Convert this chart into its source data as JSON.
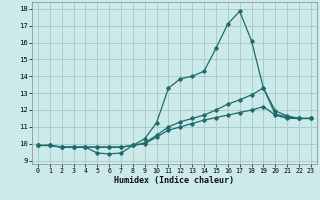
{
  "xlabel": "Humidex (Indice chaleur)",
  "xlim": [
    -0.5,
    23.5
  ],
  "ylim": [
    8.8,
    18.4
  ],
  "xticks": [
    0,
    1,
    2,
    3,
    4,
    5,
    6,
    7,
    8,
    9,
    10,
    11,
    12,
    13,
    14,
    15,
    16,
    17,
    18,
    19,
    20,
    21,
    22,
    23
  ],
  "yticks": [
    9,
    10,
    11,
    12,
    13,
    14,
    15,
    16,
    17,
    18
  ],
  "bg_color": "#cceaea",
  "grid_color": "#aacccc",
  "line_color": "#1e6b6b",
  "line1_x": [
    0,
    1,
    2,
    3,
    4,
    5,
    6,
    7,
    8,
    9,
    10,
    11,
    12,
    13,
    14,
    15,
    16,
    17,
    18,
    19,
    20,
    21,
    22,
    23
  ],
  "line1_y": [
    9.9,
    9.9,
    9.8,
    9.8,
    9.8,
    9.45,
    9.4,
    9.45,
    9.9,
    10.3,
    11.25,
    13.3,
    13.85,
    14.0,
    14.3,
    15.65,
    17.1,
    17.85,
    16.1,
    13.3,
    11.75,
    11.6,
    11.5,
    11.5
  ],
  "line2_x": [
    0,
    1,
    2,
    3,
    4,
    5,
    6,
    7,
    8,
    9,
    10,
    11,
    12,
    13,
    14,
    15,
    16,
    17,
    18,
    19,
    20,
    21,
    22,
    23
  ],
  "line2_y": [
    9.9,
    9.9,
    9.8,
    9.8,
    9.8,
    9.8,
    9.8,
    9.8,
    9.9,
    10.05,
    10.5,
    11.0,
    11.3,
    11.5,
    11.7,
    12.0,
    12.35,
    12.6,
    12.9,
    13.3,
    11.95,
    11.65,
    11.5,
    11.5
  ],
  "line3_x": [
    0,
    1,
    2,
    3,
    4,
    5,
    6,
    7,
    8,
    9,
    10,
    11,
    12,
    13,
    14,
    15,
    16,
    17,
    18,
    19,
    20,
    21,
    22,
    23
  ],
  "line3_y": [
    9.9,
    9.9,
    9.8,
    9.8,
    9.8,
    9.8,
    9.8,
    9.8,
    9.9,
    10.0,
    10.4,
    10.8,
    11.0,
    11.2,
    11.4,
    11.55,
    11.7,
    11.85,
    12.0,
    12.2,
    11.7,
    11.5,
    11.5,
    11.5
  ]
}
